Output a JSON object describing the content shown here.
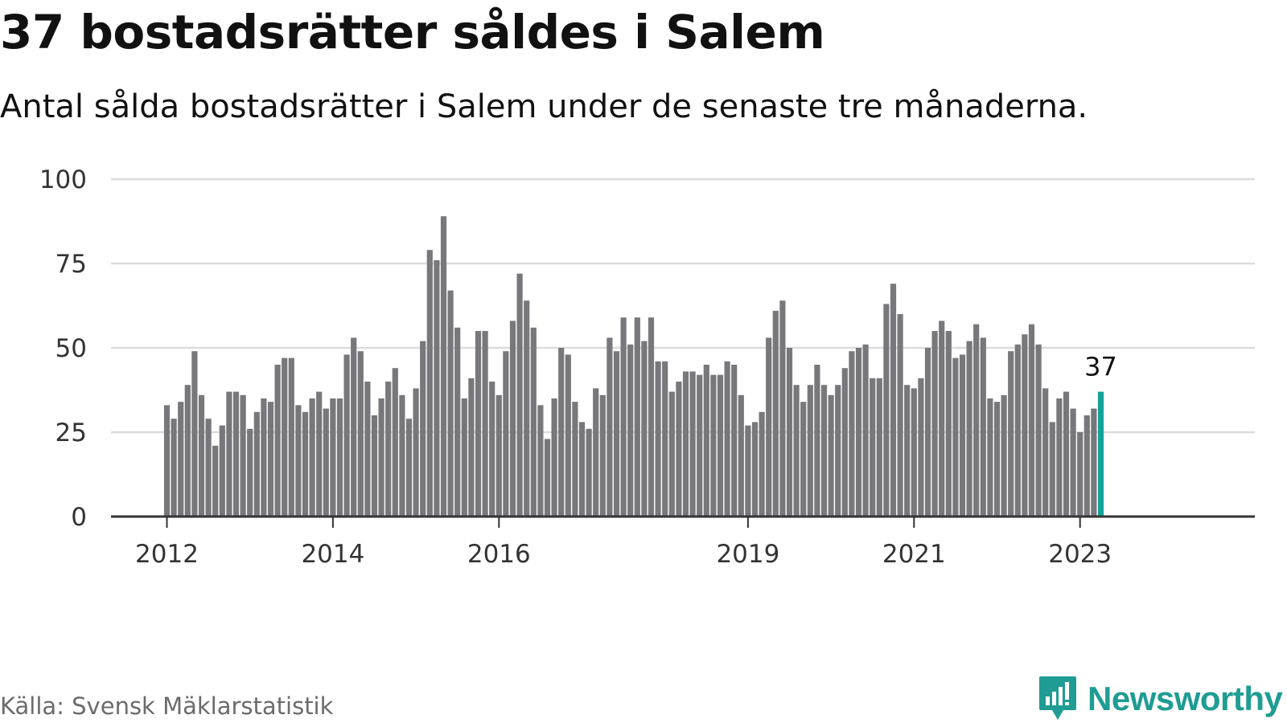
{
  "title": "37 bostadsrätter såldes i Salem",
  "subtitle": "Antal sålda bostadsrätter i Salem under de senaste tre månaderna.",
  "source": "Källa: Svensk Mäklarstatistik",
  "brand": "Newsworthy",
  "colors": {
    "bar": "#78777c",
    "highlight": "#14a39a",
    "grid": "#dcdcdc",
    "axis": "#333333",
    "brand": "#1f9c93"
  },
  "chart_data": {
    "type": "bar",
    "title": "37 bostadsrätter såldes i Salem",
    "xlabel": "",
    "ylabel": "",
    "ylim": [
      0,
      100
    ],
    "yticks": [
      0,
      25,
      50,
      75,
      100
    ],
    "grid": true,
    "x_tick_labels": [
      {
        "label": "2012",
        "index": 0
      },
      {
        "label": "2014",
        "index": 24
      },
      {
        "label": "2016",
        "index": 48
      },
      {
        "label": "2019",
        "index": 84
      },
      {
        "label": "2021",
        "index": 108
      },
      {
        "label": "2023",
        "index": 132
      }
    ],
    "highlight_index": 135,
    "highlight_label": "37",
    "values": [
      33,
      29,
      34,
      39,
      49,
      36,
      29,
      21,
      27,
      37,
      37,
      36,
      26,
      31,
      35,
      34,
      45,
      47,
      47,
      33,
      31,
      35,
      37,
      32,
      35,
      35,
      48,
      53,
      49,
      40,
      30,
      35,
      40,
      44,
      36,
      29,
      38,
      52,
      79,
      76,
      89,
      67,
      56,
      35,
      41,
      55,
      55,
      40,
      36,
      49,
      58,
      72,
      64,
      56,
      33,
      23,
      35,
      50,
      48,
      34,
      28,
      26,
      38,
      36,
      53,
      49,
      59,
      51,
      59,
      52,
      59,
      46,
      46,
      37,
      40,
      43,
      43,
      42,
      45,
      42,
      42,
      46,
      45,
      36,
      27,
      28,
      31,
      53,
      61,
      64,
      50,
      39,
      34,
      39,
      45,
      39,
      36,
      39,
      44,
      49,
      50,
      51,
      41,
      41,
      63,
      69,
      60,
      39,
      38,
      41,
      50,
      55,
      58,
      55,
      47,
      48,
      52,
      57,
      53,
      35,
      34,
      36,
      49,
      51,
      54,
      57,
      51,
      38,
      28,
      35,
      37,
      32,
      25,
      30,
      32,
      37
    ]
  }
}
